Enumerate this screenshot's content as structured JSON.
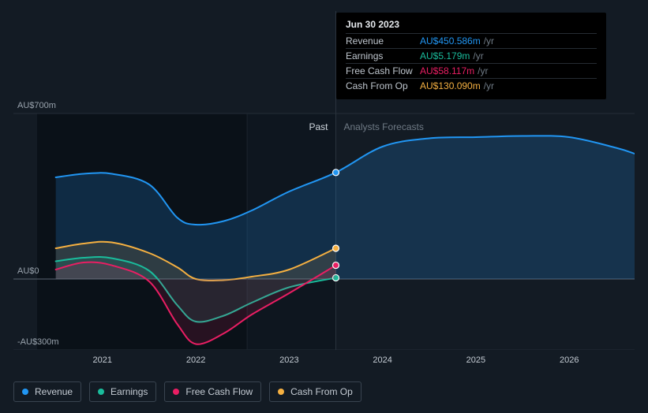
{
  "background_color": "#131b24",
  "chart": {
    "type": "area-line",
    "x_domain": [
      2020.3,
      2026.7
    ],
    "y_domain_m": [
      -300,
      700
    ],
    "x_ticks": [
      2021,
      2022,
      2023,
      2024,
      2025,
      2026
    ],
    "y_ticks": [
      {
        "v": 700,
        "label": "AU$700m"
      },
      {
        "v": 0,
        "label": "AU$0"
      },
      {
        "v": -300,
        "label": "-AU$300m"
      }
    ],
    "grid_color": "#242d37",
    "zero_line_color": "#4b5560",
    "current_x": 2023.5,
    "divider_x": 2022.55,
    "past_shade_color": "#0d141b",
    "section_labels": {
      "past": "Past",
      "forecast": "Analysts Forecasts"
    },
    "series": [
      {
        "id": "revenue",
        "label": "Revenue",
        "color": "#2196f3",
        "fill": "#2196f333",
        "marker_radius": 4,
        "points": [
          {
            "x": 2020.5,
            "y": 430
          },
          {
            "x": 2020.8,
            "y": 445
          },
          {
            "x": 2021.1,
            "y": 445
          },
          {
            "x": 2021.5,
            "y": 400
          },
          {
            "x": 2021.8,
            "y": 260
          },
          {
            "x": 2022.0,
            "y": 230
          },
          {
            "x": 2022.3,
            "y": 245
          },
          {
            "x": 2022.6,
            "y": 290
          },
          {
            "x": 2023.0,
            "y": 370
          },
          {
            "x": 2023.5,
            "y": 450.586
          },
          {
            "x": 2024.0,
            "y": 560
          },
          {
            "x": 2024.5,
            "y": 595
          },
          {
            "x": 2025.0,
            "y": 600
          },
          {
            "x": 2025.5,
            "y": 605
          },
          {
            "x": 2026.0,
            "y": 600
          },
          {
            "x": 2026.5,
            "y": 555
          },
          {
            "x": 2026.7,
            "y": 530
          }
        ]
      },
      {
        "id": "cash_from_op",
        "label": "Cash From Op",
        "color": "#f5b041",
        "fill": "#f5b04122",
        "marker_radius": 4,
        "points": [
          {
            "x": 2020.5,
            "y": 130
          },
          {
            "x": 2020.8,
            "y": 150
          },
          {
            "x": 2021.1,
            "y": 155
          },
          {
            "x": 2021.5,
            "y": 110
          },
          {
            "x": 2021.8,
            "y": 50
          },
          {
            "x": 2022.0,
            "y": 0
          },
          {
            "x": 2022.3,
            "y": -5
          },
          {
            "x": 2022.6,
            "y": 10
          },
          {
            "x": 2023.0,
            "y": 40
          },
          {
            "x": 2023.5,
            "y": 130.09
          }
        ]
      },
      {
        "id": "earnings",
        "label": "Earnings",
        "color": "#1abc9c",
        "fill": "#1abc9c22",
        "marker_radius": 4,
        "points": [
          {
            "x": 2020.5,
            "y": 75
          },
          {
            "x": 2020.8,
            "y": 90
          },
          {
            "x": 2021.1,
            "y": 88
          },
          {
            "x": 2021.5,
            "y": 35
          },
          {
            "x": 2021.8,
            "y": -110
          },
          {
            "x": 2022.0,
            "y": -180
          },
          {
            "x": 2022.3,
            "y": -155
          },
          {
            "x": 2022.6,
            "y": -100
          },
          {
            "x": 2023.0,
            "y": -35
          },
          {
            "x": 2023.5,
            "y": 5.179
          }
        ]
      },
      {
        "id": "fcf",
        "label": "Free Cash Flow",
        "color": "#e91e63",
        "fill": "#e91e6322",
        "marker_radius": 4,
        "points": [
          {
            "x": 2020.5,
            "y": 40
          },
          {
            "x": 2020.8,
            "y": 70
          },
          {
            "x": 2021.1,
            "y": 58
          },
          {
            "x": 2021.5,
            "y": -10
          },
          {
            "x": 2021.8,
            "y": -190
          },
          {
            "x": 2022.0,
            "y": -275
          },
          {
            "x": 2022.3,
            "y": -230
          },
          {
            "x": 2022.6,
            "y": -150
          },
          {
            "x": 2023.0,
            "y": -60
          },
          {
            "x": 2023.5,
            "y": 58.117
          }
        ]
      }
    ]
  },
  "tooltip": {
    "title": "Jun 30 2023",
    "rows": [
      {
        "label": "Revenue",
        "value": "AU$450.586m",
        "suffix": "/yr",
        "color": "#2196f3"
      },
      {
        "label": "Earnings",
        "value": "AU$5.179m",
        "suffix": "/yr",
        "color": "#1abc9c"
      },
      {
        "label": "Free Cash Flow",
        "value": "AU$58.117m",
        "suffix": "/yr",
        "color": "#e91e63"
      },
      {
        "label": "Cash From Op",
        "value": "AU$130.090m",
        "suffix": "/yr",
        "color": "#f5b041"
      }
    ]
  },
  "legend": [
    {
      "id": "revenue",
      "label": "Revenue",
      "color": "#2196f3"
    },
    {
      "id": "earnings",
      "label": "Earnings",
      "color": "#1abc9c"
    },
    {
      "id": "fcf",
      "label": "Free Cash Flow",
      "color": "#e91e63"
    },
    {
      "id": "cash_from_op",
      "label": "Cash From Op",
      "color": "#f5b041"
    }
  ]
}
